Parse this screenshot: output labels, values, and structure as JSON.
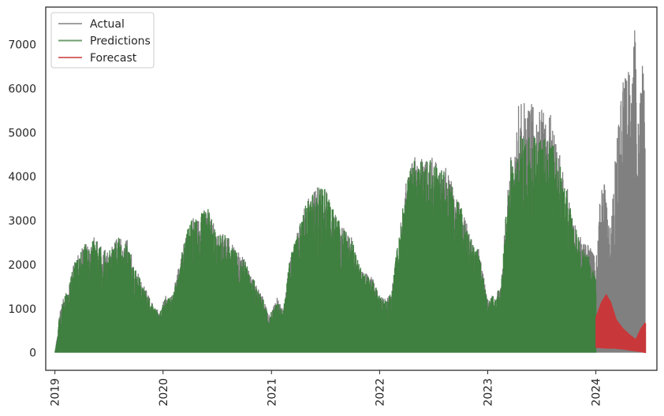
{
  "chart_data": {
    "type": "line",
    "title": "",
    "xlabel": "",
    "ylabel": "",
    "x_range": [
      "2018-12-01",
      "2024-07-25"
    ],
    "ylim": [
      -400,
      7850
    ],
    "x_ticks": [
      {
        "date": "2019-01-01",
        "label": "2019"
      },
      {
        "date": "2020-01-01",
        "label": "2020"
      },
      {
        "date": "2021-01-01",
        "label": "2021"
      },
      {
        "date": "2022-01-01",
        "label": "2022"
      },
      {
        "date": "2023-01-01",
        "label": "2023"
      },
      {
        "date": "2024-01-01",
        "label": "2024"
      }
    ],
    "y_ticks": [
      0,
      1000,
      2000,
      3000,
      4000,
      5000,
      6000,
      7000
    ],
    "grid": false,
    "legend_position": "top-left",
    "series": [
      {
        "name": "Actual",
        "color": "#808080",
        "style": "filled-daily-band",
        "envelope": [
          [
            "2019-01-01",
            0
          ],
          [
            "2019-01-10",
            450
          ],
          [
            "2019-01-15",
            820
          ],
          [
            "2019-02-01",
            1350
          ],
          [
            "2019-02-15",
            1400
          ],
          [
            "2019-03-01",
            1950
          ],
          [
            "2019-04-01",
            2400
          ],
          [
            "2019-04-15",
            2550
          ],
          [
            "2019-05-01",
            2300
          ],
          [
            "2019-05-10",
            2750
          ],
          [
            "2019-06-01",
            2450
          ],
          [
            "2019-07-01",
            2300
          ],
          [
            "2019-08-01",
            2700
          ],
          [
            "2019-08-20",
            2500
          ],
          [
            "2019-09-01",
            2600
          ],
          [
            "2019-10-01",
            1900
          ],
          [
            "2019-11-01",
            1500
          ],
          [
            "2019-12-01",
            1050
          ],
          [
            "2019-12-20",
            950
          ],
          [
            "2020-01-10",
            1300
          ],
          [
            "2020-02-01",
            1300
          ],
          [
            "2020-03-01",
            2200
          ],
          [
            "2020-04-01",
            3050
          ],
          [
            "2020-05-01",
            3050
          ],
          [
            "2020-05-15",
            3300
          ],
          [
            "2020-06-01",
            3300
          ],
          [
            "2020-07-01",
            2700
          ],
          [
            "2020-08-01",
            2700
          ],
          [
            "2020-09-01",
            2350
          ],
          [
            "2020-10-01",
            2150
          ],
          [
            "2020-11-01",
            1700
          ],
          [
            "2020-12-01",
            1300
          ],
          [
            "2020-12-25",
            850
          ],
          [
            "2021-01-20",
            1250
          ],
          [
            "2021-02-10",
            1000
          ],
          [
            "2021-03-01",
            2100
          ],
          [
            "2021-04-01",
            2800
          ],
          [
            "2021-05-01",
            3500
          ],
          [
            "2021-06-01",
            3800
          ],
          [
            "2021-07-01",
            3800
          ],
          [
            "2021-08-01",
            3200
          ],
          [
            "2021-09-01",
            2900
          ],
          [
            "2021-10-01",
            2600
          ],
          [
            "2021-11-01",
            1900
          ],
          [
            "2021-12-10",
            1700
          ],
          [
            "2022-01-01",
            1300
          ],
          [
            "2022-01-20",
            1250
          ],
          [
            "2022-02-10",
            1400
          ],
          [
            "2022-03-01",
            2400
          ],
          [
            "2022-04-01",
            3900
          ],
          [
            "2022-04-20",
            4500
          ],
          [
            "2022-05-20",
            4500
          ],
          [
            "2022-06-15",
            4550
          ],
          [
            "2022-07-10",
            4350
          ],
          [
            "2022-08-10",
            4300
          ],
          [
            "2022-09-10",
            3700
          ],
          [
            "2022-10-10",
            3300
          ],
          [
            "2022-11-01",
            2700
          ],
          [
            "2022-12-01",
            2400
          ],
          [
            "2023-01-01",
            1200
          ],
          [
            "2023-01-25",
            1350
          ],
          [
            "2023-02-15",
            1500
          ],
          [
            "2023-03-01",
            3000
          ],
          [
            "2023-03-20",
            4500
          ],
          [
            "2023-04-01",
            4300
          ],
          [
            "2023-04-15",
            5650
          ],
          [
            "2023-05-15",
            5700
          ],
          [
            "2023-06-15",
            5600
          ],
          [
            "2023-07-15",
            5500
          ],
          [
            "2023-08-10",
            5350
          ],
          [
            "2023-09-01",
            4500
          ],
          [
            "2023-10-01",
            3600
          ],
          [
            "2023-11-01",
            2800
          ],
          [
            "2023-12-01",
            2500
          ],
          [
            "2024-01-05",
            2200
          ],
          [
            "2024-01-15",
            3600
          ],
          [
            "2024-02-01",
            3950
          ],
          [
            "2024-02-15",
            2800
          ],
          [
            "2024-03-01",
            4000
          ],
          [
            "2024-03-15",
            5100
          ],
          [
            "2024-04-01",
            6200
          ],
          [
            "2024-04-20",
            6500
          ],
          [
            "2024-05-01",
            5800
          ],
          [
            "2024-05-10",
            7550
          ],
          [
            "2024-05-25",
            5500
          ],
          [
            "2024-06-10",
            7000
          ],
          [
            "2024-06-15",
            6600
          ],
          [
            "2024-06-16",
            0
          ]
        ]
      },
      {
        "name": "Predictions",
        "color": "#3f7f3f",
        "style": "filled-daily-band",
        "envelope": [
          [
            "2019-01-01",
            0
          ],
          [
            "2019-01-10",
            420
          ],
          [
            "2019-01-15",
            800
          ],
          [
            "2019-02-01",
            1330
          ],
          [
            "2019-02-15",
            1380
          ],
          [
            "2019-03-01",
            1930
          ],
          [
            "2019-04-01",
            2380
          ],
          [
            "2019-04-15",
            2530
          ],
          [
            "2019-05-01",
            2280
          ],
          [
            "2019-05-10",
            2730
          ],
          [
            "2019-06-01",
            2430
          ],
          [
            "2019-07-01",
            2280
          ],
          [
            "2019-08-01",
            2680
          ],
          [
            "2019-08-20",
            2480
          ],
          [
            "2019-09-01",
            2580
          ],
          [
            "2019-10-01",
            1880
          ],
          [
            "2019-11-01",
            1480
          ],
          [
            "2019-12-01",
            1030
          ],
          [
            "2019-12-20",
            930
          ],
          [
            "2020-01-10",
            1280
          ],
          [
            "2020-02-01",
            1280
          ],
          [
            "2020-03-01",
            2180
          ],
          [
            "2020-04-01",
            3030
          ],
          [
            "2020-05-01",
            3030
          ],
          [
            "2020-05-15",
            3280
          ],
          [
            "2020-06-01",
            3280
          ],
          [
            "2020-07-01",
            2680
          ],
          [
            "2020-08-01",
            2680
          ],
          [
            "2020-09-01",
            2330
          ],
          [
            "2020-10-01",
            2130
          ],
          [
            "2020-11-01",
            1680
          ],
          [
            "2020-12-01",
            1280
          ],
          [
            "2020-12-25",
            830
          ],
          [
            "2021-01-20",
            1230
          ],
          [
            "2021-02-10",
            980
          ],
          [
            "2021-03-01",
            2080
          ],
          [
            "2021-04-01",
            2780
          ],
          [
            "2021-05-01",
            3480
          ],
          [
            "2021-06-01",
            3780
          ],
          [
            "2021-07-01",
            3780
          ],
          [
            "2021-08-01",
            3180
          ],
          [
            "2021-09-01",
            2880
          ],
          [
            "2021-10-01",
            2580
          ],
          [
            "2021-11-01",
            1880
          ],
          [
            "2021-12-10",
            1680
          ],
          [
            "2022-01-01",
            1280
          ],
          [
            "2022-01-20",
            1230
          ],
          [
            "2022-02-10",
            1380
          ],
          [
            "2022-03-01",
            2380
          ],
          [
            "2022-04-01",
            3850
          ],
          [
            "2022-04-20",
            4400
          ],
          [
            "2022-05-20",
            4380
          ],
          [
            "2022-06-15",
            4420
          ],
          [
            "2022-07-10",
            4250
          ],
          [
            "2022-08-10",
            4200
          ],
          [
            "2022-09-10",
            3650
          ],
          [
            "2022-10-10",
            3250
          ],
          [
            "2022-11-01",
            2650
          ],
          [
            "2022-12-01",
            2350
          ],
          [
            "2023-01-01",
            1180
          ],
          [
            "2023-01-25",
            1330
          ],
          [
            "2023-02-15",
            1480
          ],
          [
            "2023-03-01",
            2950
          ],
          [
            "2023-03-20",
            4400
          ],
          [
            "2023-04-01",
            4250
          ],
          [
            "2023-04-15",
            4900
          ],
          [
            "2023-05-15",
            5000
          ],
          [
            "2023-06-15",
            4950
          ],
          [
            "2023-07-15",
            4900
          ],
          [
            "2023-08-10",
            4750
          ],
          [
            "2023-09-01",
            4300
          ],
          [
            "2023-10-01",
            3500
          ],
          [
            "2023-11-01",
            2700
          ],
          [
            "2023-12-01",
            2300
          ],
          [
            "2024-01-01",
            1800
          ],
          [
            "2024-01-02",
            0
          ]
        ]
      },
      {
        "name": "Forecast",
        "color": "#c8383a",
        "style": "filled-band",
        "upper": [
          [
            "2024-01-01",
            800
          ],
          [
            "2024-01-20",
            1150
          ],
          [
            "2024-02-05",
            1320
          ],
          [
            "2024-02-20",
            1150
          ],
          [
            "2024-03-10",
            750
          ],
          [
            "2024-04-01",
            550
          ],
          [
            "2024-04-25",
            400
          ],
          [
            "2024-05-15",
            300
          ],
          [
            "2024-06-01",
            550
          ],
          [
            "2024-06-15",
            680
          ],
          [
            "2024-06-17",
            650
          ]
        ],
        "lower": [
          [
            "2024-01-01",
            120
          ],
          [
            "2024-02-01",
            100
          ],
          [
            "2024-03-01",
            100
          ],
          [
            "2024-04-01",
            80
          ],
          [
            "2024-05-01",
            50
          ],
          [
            "2024-06-01",
            20
          ],
          [
            "2024-06-17",
            0
          ]
        ]
      }
    ]
  }
}
